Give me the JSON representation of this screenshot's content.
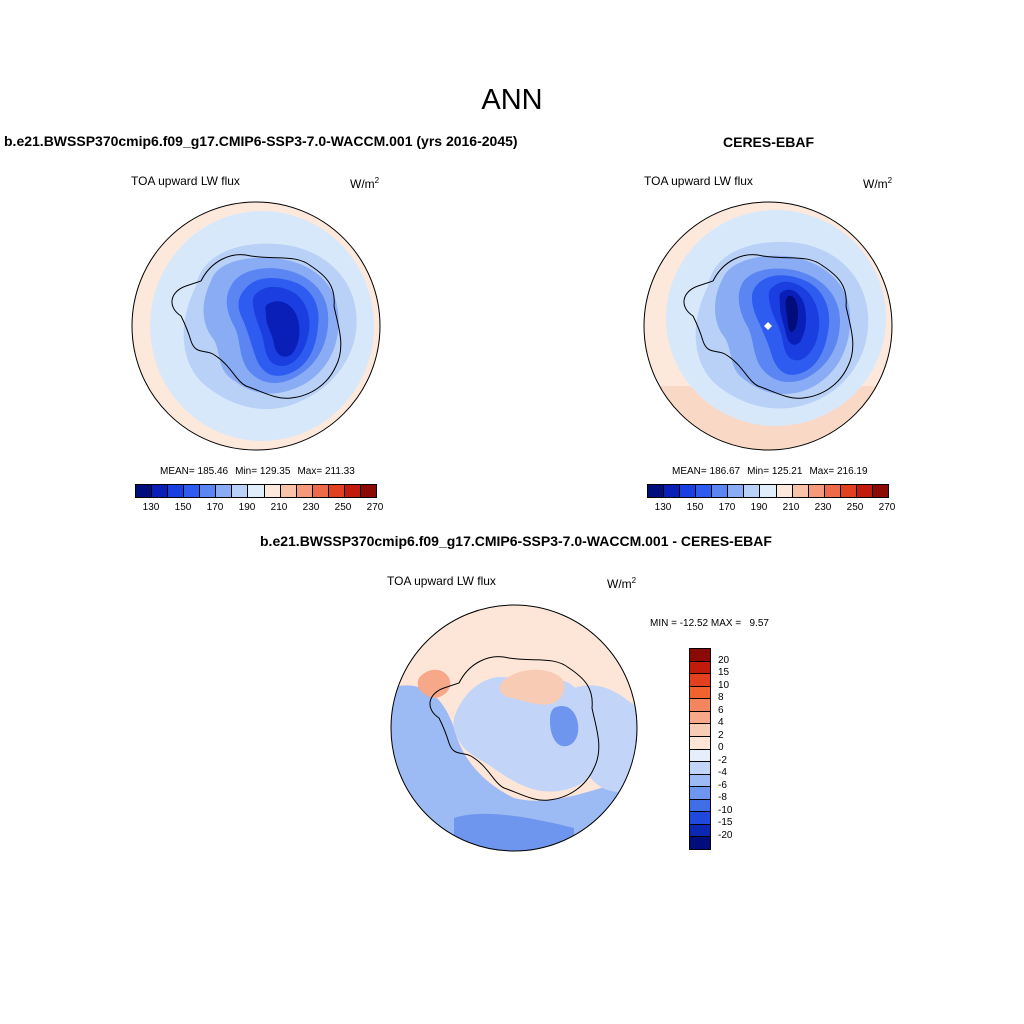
{
  "figure_title": "ANN",
  "panels": {
    "model": {
      "title": "b.e21.BWSSP370cmip6.f09_g17.CMIP6-SSP3-7.0-WACCM.001 (yrs 2016-2045)",
      "variable": "TOA upward LW flux",
      "units": "W/m",
      "units_sup": "2",
      "stats": {
        "mean": "MEAN= 185.46",
        "min": "Min= 129.35",
        "max": "Max= 211.33"
      }
    },
    "obs": {
      "title": "CERES-EBAF",
      "variable": "TOA upward LW flux",
      "units": "W/m",
      "units_sup": "2",
      "stats": {
        "mean": "MEAN= 186.67",
        "min": "Min= 125.21",
        "max": "Max= 216.19"
      }
    },
    "diff": {
      "title": "b.e21.BWSSP370cmip6.f09_g17.CMIP6-SSP3-7.0-WACCM.001 - CERES-EBAF",
      "variable": "TOA upward LW flux",
      "units": "W/m",
      "units_sup": "2",
      "minmax": "MIN = -12.52 MAX =   9.57"
    }
  },
  "abs_colorbar": {
    "colors": [
      "#000d7a",
      "#0a1fb8",
      "#1a3ee0",
      "#2e5cf0",
      "#5a85f2",
      "#8aacf4",
      "#b9d0f7",
      "#e0edfb",
      "#fde8dc",
      "#f8c4a8",
      "#f59a78",
      "#ef6a48",
      "#e2401f",
      "#c21b0c",
      "#8c0a05"
    ],
    "tick_labels": [
      "130",
      "150",
      "170",
      "190",
      "210",
      "230",
      "250",
      "270"
    ]
  },
  "diff_colorbar": {
    "colors_top_to_bottom": [
      "#8c0a05",
      "#c21b0c",
      "#e2401f",
      "#f2622f",
      "#f4865e",
      "#f6a888",
      "#f8ccb4",
      "#fde6d8",
      "#e6eefc",
      "#c2d5f8",
      "#9cbaf3",
      "#6e96ee",
      "#3f6ee6",
      "#1f48dc",
      "#0c27b2",
      "#000d7a"
    ],
    "tick_labels": [
      "20",
      "15",
      "10",
      "8",
      "6",
      "4",
      "2",
      "0",
      "-2",
      "-4",
      "-6",
      "-8",
      "-10",
      "-15",
      "-20"
    ]
  },
  "map_colors": {
    "ocean_pale": "#fde8dc",
    "ocean_light_blue": "#d8e8fb",
    "blue_190": "#b9d0f7",
    "blue_170": "#8aacf4",
    "blue_160": "#5a85f2",
    "blue_150": "#2e5cf0",
    "blue_140": "#1a3ee0",
    "blue_130": "#0a1fb8",
    "blue_120": "#000d7a",
    "diff_neutral": "#fde6d8",
    "diff_minus2": "#c2d5f8",
    "diff_minus4": "#9cbaf3",
    "diff_minus6": "#6e96ee",
    "diff_plus2": "#f8ccb4",
    "diff_plus4": "#f6a888"
  }
}
